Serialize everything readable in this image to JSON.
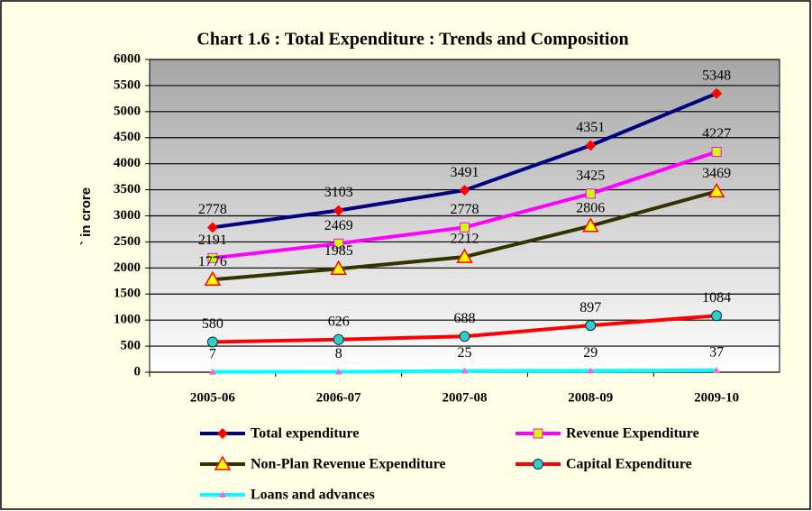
{
  "chart_data": {
    "type": "line",
    "title": "Chart 1.6 :  Total Expenditure : Trends and Composition",
    "y_label": "` in crore",
    "categories": [
      "2005-06",
      "2006-07",
      "2007-08",
      "2008-09",
      "2009-10"
    ],
    "series": [
      {
        "name": "Total expenditure",
        "color": "#000080",
        "marker": "diamond",
        "marker_color": "#FF0000",
        "values": [
          2778,
          3103,
          3491,
          4351,
          5348
        ]
      },
      {
        "name": "Revenue Expenditure",
        "color": "#FF00FF",
        "marker": "square",
        "marker_color": "#CCFF00",
        "values": [
          2191,
          2469,
          2778,
          3425,
          4227
        ]
      },
      {
        "name": "Non-Plan Revenue Expenditure",
        "color": "#333300",
        "marker": "triangle",
        "marker_color": "#FFFF00",
        "values": [
          1776,
          1985,
          2212,
          2806,
          3469
        ]
      },
      {
        "name": "Capital Expenditure",
        "color": "#FF0000",
        "marker": "circle",
        "marker_color": "#33CCCC",
        "values": [
          580,
          626,
          688,
          897,
          1084
        ]
      },
      {
        "name": "Loans and advances",
        "color": "#00FFFF",
        "marker": "triangle-small",
        "marker_color": "#FF66CC",
        "values": [
          7,
          8,
          25,
          29,
          37
        ]
      }
    ],
    "ylim": [
      0,
      6000
    ],
    "yticks": [
      0,
      500,
      1000,
      1500,
      2000,
      2500,
      3000,
      3500,
      4000,
      4500,
      5000,
      5500,
      6000
    ],
    "grid": true
  }
}
